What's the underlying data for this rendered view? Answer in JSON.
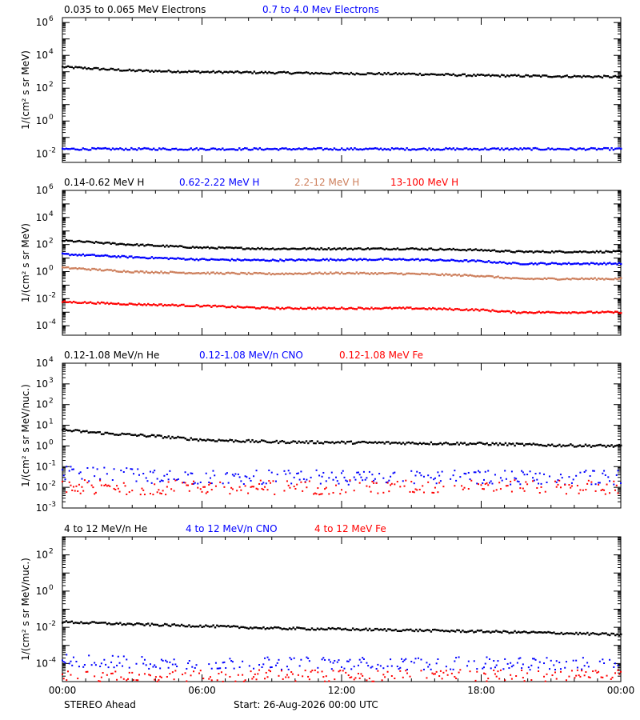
{
  "footer": {
    "left": "STEREO Ahead",
    "center": "Start: 26-Aug-2026 00:00 UTC"
  },
  "chart_data": [
    {
      "type": "scatter",
      "ylabel": "1/(cm² s sr MeV)",
      "yscale": "log",
      "ylim": [
        0.003,
        2000000
      ],
      "ytick_exponents": [
        -2,
        0,
        2,
        4,
        6
      ],
      "xlim": [
        0,
        24
      ],
      "xtick_labels": [
        "00:00",
        "06:00",
        "12:00",
        "18:00",
        "00:00"
      ],
      "grid": false,
      "legend_placement": "top-left, above plot",
      "series": [
        {
          "name": "0.035 to 0.065 MeV Electrons",
          "color": "#000000",
          "marker_size": 2.4,
          "x": [
            0,
            3,
            6,
            9,
            12,
            15,
            18,
            21,
            24
          ],
          "y": [
            2000,
            1200,
            1000,
            900,
            800,
            750,
            600,
            550,
            500
          ]
        },
        {
          "name": "0.7 to 4.0 Mev Electrons",
          "color": "#0000ff",
          "marker_size": 2.4,
          "x": [
            0,
            3,
            6,
            9,
            12,
            15,
            18,
            21,
            24
          ],
          "y": [
            0.02,
            0.02,
            0.02,
            0.02,
            0.02,
            0.02,
            0.02,
            0.02,
            0.02
          ]
        }
      ]
    },
    {
      "type": "scatter",
      "ylabel": "1/(cm² s sr MeV)",
      "yscale": "log",
      "ylim": [
        2e-05,
        1000000
      ],
      "ytick_exponents": [
        -4,
        -2,
        0,
        2,
        4,
        6
      ],
      "xlim": [
        0,
        24
      ],
      "grid": false,
      "legend_placement": "top-left, above plot",
      "series": [
        {
          "name": "0.14-0.62 MeV H",
          "color": "#000000",
          "marker_size": 2.4,
          "x": [
            0,
            3,
            6,
            9,
            12,
            15,
            18,
            19.5,
            21,
            24
          ],
          "y": [
            200,
            100,
            60,
            50,
            50,
            50,
            40,
            30,
            30,
            30
          ]
        },
        {
          "name": "0.62-2.22 MeV H",
          "color": "#0000ff",
          "marker_size": 2.4,
          "x": [
            0,
            3,
            6,
            9,
            12,
            15,
            18,
            19.5,
            21,
            24
          ],
          "y": [
            20,
            12,
            8,
            7,
            8,
            8,
            6,
            4,
            4,
            4
          ]
        },
        {
          "name": "2.2-12 MeV H",
          "color": "#cd7f5c",
          "marker_size": 2.4,
          "x": [
            0,
            3,
            6,
            9,
            12,
            15,
            18,
            19.5,
            21,
            24
          ],
          "y": [
            2,
            1,
            0.8,
            0.7,
            0.8,
            0.7,
            0.5,
            0.3,
            0.3,
            0.3
          ]
        },
        {
          "name": "13-100 MeV H",
          "color": "#ff0000",
          "marker_size": 2.4,
          "x": [
            0,
            3,
            6,
            9,
            12,
            15,
            18,
            19.5,
            21,
            24
          ],
          "y": [
            0.006,
            0.004,
            0.003,
            0.002,
            0.002,
            0.002,
            0.0015,
            0.001,
            0.001,
            0.001
          ]
        }
      ]
    },
    {
      "type": "scatter",
      "ylabel": "1/(cm² s sr MeV/nuc.)",
      "yscale": "log",
      "ylim": [
        0.001,
        10000
      ],
      "ytick_exponents": [
        -3,
        -2,
        -1,
        0,
        1,
        2,
        3,
        4
      ],
      "xlim": [
        0,
        24
      ],
      "grid": false,
      "legend_placement": "top-left, above plot",
      "series": [
        {
          "name": "0.12-1.08 MeV/n He",
          "color": "#000000",
          "marker_size": 2.4,
          "x": [
            0,
            2,
            4,
            6,
            9,
            12,
            15,
            18,
            21,
            24
          ],
          "y": [
            6,
            4,
            3,
            2,
            1.6,
            1.5,
            1.4,
            1.3,
            1.1,
            1
          ]
        },
        {
          "name": "0.12-1.08 MeV/n CNO",
          "color": "#0000ff",
          "marker_size": 2,
          "x": [
            0,
            2,
            6,
            12,
            18,
            24
          ],
          "y": [
            0.05,
            0.04,
            0.03,
            0.03,
            0.03,
            0.03
          ]
        },
        {
          "name": "0.12-1.08 MeV Fe",
          "color": "#ff0000",
          "marker_size": 2,
          "x": [
            0,
            24
          ],
          "y": [
            0.01,
            0.01
          ]
        }
      ]
    },
    {
      "type": "scatter",
      "ylabel": "1/(cm² s sr MeV/nuc.)",
      "yscale": "log",
      "ylim": [
        1e-05,
        1000
      ],
      "ytick_exponents": [
        -4,
        -2,
        0,
        2
      ],
      "xlim": [
        0,
        24
      ],
      "grid": false,
      "legend_placement": "top-left, above plot",
      "series": [
        {
          "name": "4 to 12 MeV/n He",
          "color": "#000000",
          "marker_size": 2.4,
          "x": [
            0,
            3,
            6,
            9,
            12,
            15,
            18,
            21,
            24
          ],
          "y": [
            0.02,
            0.015,
            0.012,
            0.009,
            0.008,
            0.007,
            0.006,
            0.005,
            0.004
          ]
        },
        {
          "name": "4 to 12 MeV/n CNO",
          "color": "#0000ff",
          "marker_size": 2,
          "x": [
            0,
            3,
            6,
            12,
            18,
            24
          ],
          "y": [
            0.00015,
            0.00012,
            0.0001,
            0.0001,
            0.0001,
            0.0001
          ]
        },
        {
          "name": "4 to 12 MeV Fe",
          "color": "#ff0000",
          "marker_size": 2,
          "x": [
            0,
            24
          ],
          "y": [
            2e-05,
            2e-05
          ]
        }
      ]
    }
  ]
}
